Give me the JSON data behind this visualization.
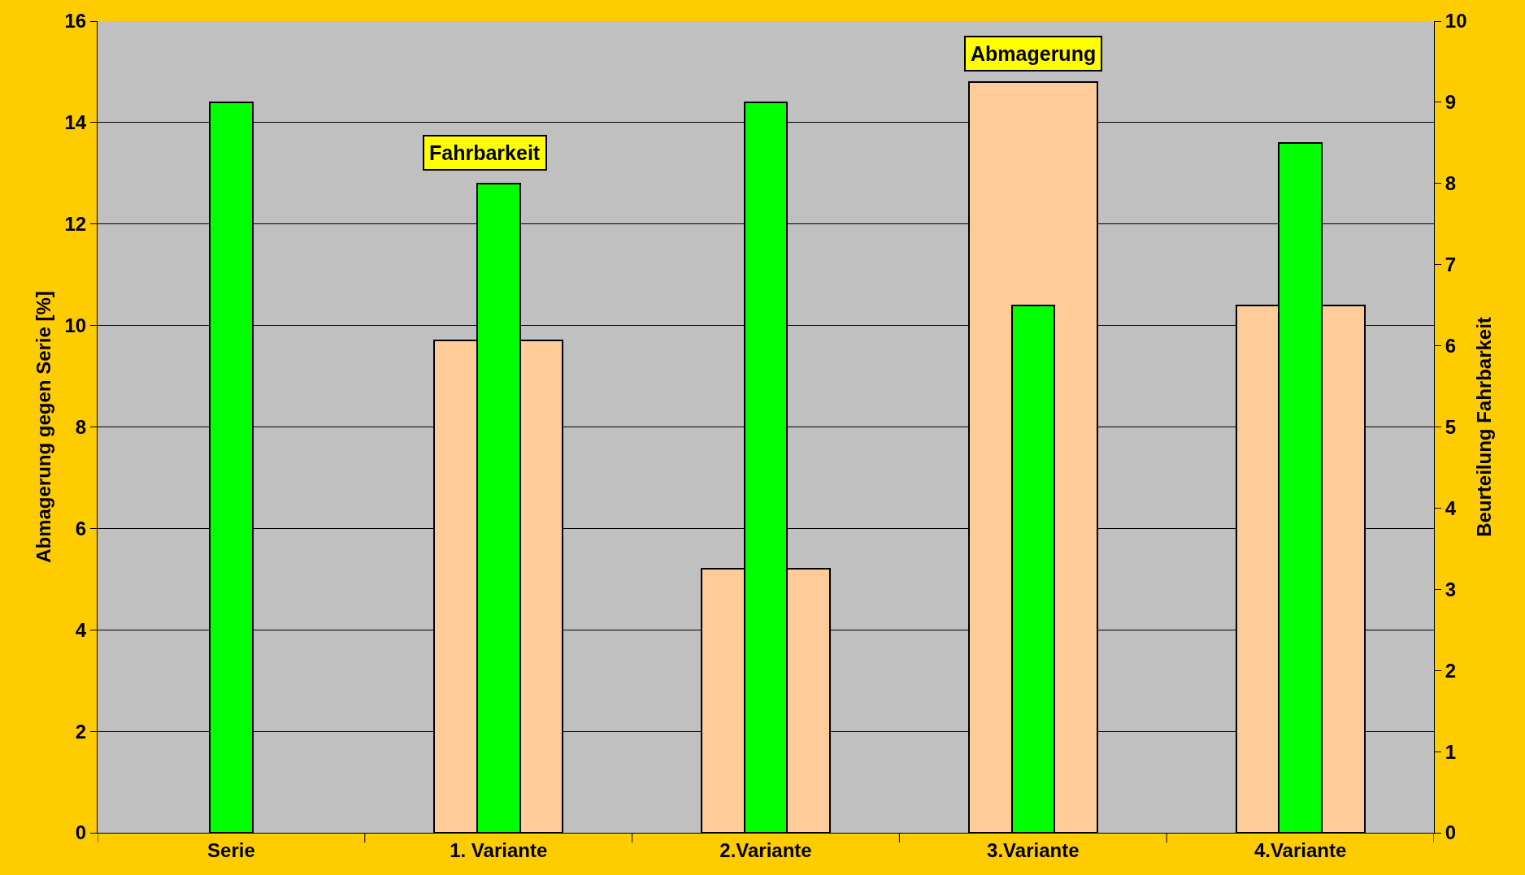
{
  "chart_data": {
    "type": "bar",
    "categories": [
      "Serie",
      "1. Variante",
      "2.Variante",
      "3.Variante",
      "4.Variante"
    ],
    "series": [
      {
        "color": "#ffcc99",
        "values": [
          null,
          9.7,
          5.2,
          14.8,
          10.4
        ]
      },
      {
        "color": "#00ff00",
        "values": [
          9.0,
          8.0,
          9.0,
          6.5,
          8.5
        ],
        "axis": "y2"
      }
    ],
    "ylabel": "Abmagerung gegen Serie [%]",
    "y2label": "Beurteilung Fahrbarkeit",
    "ylim": [
      0,
      16
    ],
    "yticks": [
      0,
      2,
      4,
      6,
      8,
      10,
      12,
      14,
      16
    ],
    "y2lim": [
      0,
      10
    ],
    "y2ticks": [
      0,
      1,
      2,
      3,
      4,
      5,
      6,
      7,
      8,
      9,
      10
    ],
    "annotations": [
      "Fahrbarkeit",
      "Abmagerung"
    ],
    "grid": "y"
  }
}
